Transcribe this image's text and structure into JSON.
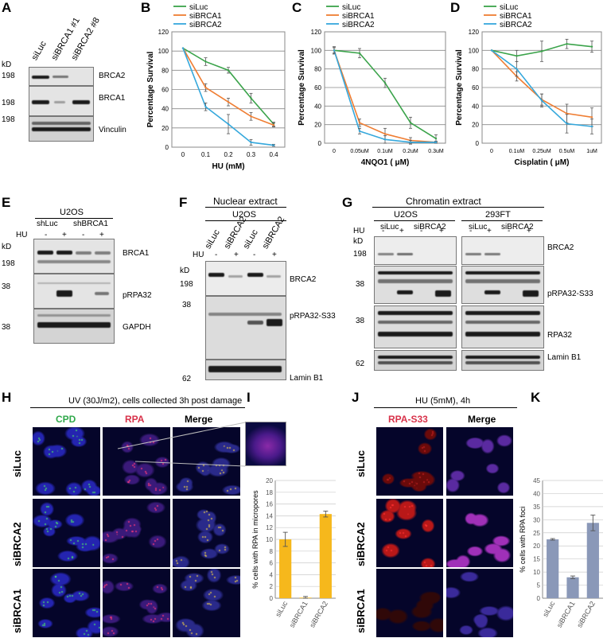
{
  "panels": {
    "A": "A",
    "B": "B",
    "C": "C",
    "D": "D",
    "E": "E",
    "F": "F",
    "G": "G",
    "H": "H",
    "I": "I",
    "J": "J",
    "K": "K"
  },
  "panelA": {
    "lanes": [
      "siLuc",
      "siBRCA1 #1",
      "siBRCA2 #8"
    ],
    "kd": "kD",
    "markers": [
      "198",
      "198",
      "198"
    ],
    "proteins": [
      "BRCA2",
      "BRCA1",
      "Vinculin"
    ]
  },
  "colors": {
    "siLuc": "#3aa34a",
    "siBRCA1": "#ef7d32",
    "siBRCA2": "#35a8dc",
    "bar_I": "#f6b81c",
    "bar_K": "#8a98b8"
  },
  "chart_data": [
    {
      "type": "line",
      "panel": "B",
      "ylabel": "Percentage Survival",
      "xlabel": "HU (mM)",
      "x": [
        "0",
        "0.1",
        "0.2",
        "0.3",
        "0.4"
      ],
      "ylim": [
        0,
        120
      ],
      "yticks": [
        0,
        20,
        40,
        60,
        80,
        100,
        120
      ],
      "series": [
        {
          "name": "siLuc",
          "values": [
            103,
            89,
            80,
            51,
            24
          ],
          "err": [
            0,
            4,
            3,
            5,
            2
          ]
        },
        {
          "name": "siBRCA1",
          "values": [
            103,
            62,
            47,
            32,
            23
          ],
          "err": [
            0,
            4,
            4,
            4,
            2
          ]
        },
        {
          "name": "siBRCA2",
          "values": [
            103,
            42,
            24,
            5,
            2
          ],
          "err": [
            0,
            4,
            10,
            3,
            1
          ]
        }
      ]
    },
    {
      "type": "line",
      "panel": "C",
      "ylabel": "Percentage Survival",
      "xlabel": "4NQO1 ( μM)",
      "x": [
        "0",
        "0.05uM",
        "0.1uM",
        "0.2uM",
        "0.3uM"
      ],
      "ylim": [
        0,
        120
      ],
      "yticks": [
        0,
        20,
        40,
        60,
        80,
        100,
        120
      ],
      "series": [
        {
          "name": "siLuc",
          "values": [
            100,
            97,
            65,
            22,
            5
          ],
          "err": [
            4,
            5,
            5,
            6,
            4
          ]
        },
        {
          "name": "siBRCA1",
          "values": [
            100,
            22,
            10,
            3,
            1
          ],
          "err": [
            3,
            4,
            6,
            3,
            1
          ]
        },
        {
          "name": "siBRCA2",
          "values": [
            100,
            13,
            4,
            1,
            1
          ],
          "err": [
            3,
            3,
            4,
            2,
            1
          ]
        }
      ]
    },
    {
      "type": "line",
      "panel": "D",
      "ylabel": "Percentage Survival",
      "xlabel": "Cisplatin ( μM)",
      "x": [
        "0",
        "0.1uM",
        "0.25uM",
        "0.5uM",
        "1uM"
      ],
      "ylim": [
        0,
        120
      ],
      "yticks": [
        0,
        20,
        40,
        60,
        80,
        100,
        120
      ],
      "series": [
        {
          "name": "siLuc",
          "values": [
            100,
            94,
            99,
            107,
            104
          ],
          "err": [
            0,
            6,
            11,
            5,
            6
          ]
        },
        {
          "name": "siBRCA1",
          "values": [
            100,
            72,
            47,
            32,
            28
          ],
          "err": [
            0,
            5,
            6,
            10,
            10
          ]
        },
        {
          "name": "siBRCA2",
          "values": [
            100,
            80,
            46,
            21,
            18
          ],
          "err": [
            0,
            8,
            7,
            10,
            8
          ]
        }
      ]
    },
    {
      "type": "bar",
      "panel": "I",
      "ylabel": "% cells with RPA in micropores",
      "categories": [
        "siLuc",
        "siBRCA1",
        "siBRCA2"
      ],
      "values": [
        10.0,
        0.1,
        14.3
      ],
      "err": [
        1.2,
        0.2,
        0.5
      ],
      "ylim": [
        0,
        20
      ],
      "yticks": [
        0,
        2,
        4,
        6,
        8,
        10,
        12,
        14,
        16,
        18,
        20
      ]
    },
    {
      "type": "bar",
      "panel": "K",
      "ylabel": "% cells with RPA foci",
      "categories": [
        "siLuc",
        "siBRCA1",
        "siBRCA2"
      ],
      "values": [
        22.5,
        8.0,
        28.8
      ],
      "err": [
        0.3,
        0.5,
        3.0
      ],
      "ylim": [
        0,
        45
      ],
      "yticks": [
        0,
        5,
        10,
        15,
        20,
        25,
        30,
        35,
        40,
        45
      ]
    }
  ],
  "panelE": {
    "cell": "U2OS",
    "groups": [
      "shLuc",
      "shBRCA1"
    ],
    "hu": "HU",
    "signs": [
      "-",
      "+",
      "-",
      "+"
    ],
    "kd": "kD",
    "markers": [
      "198",
      "38",
      "38"
    ],
    "proteins": [
      "BRCA1",
      "pRPA32",
      "GAPDH"
    ]
  },
  "panelF": {
    "title": "Nuclear extract",
    "cell": "U2OS",
    "lanes": [
      "siLuc",
      "siBRCA2",
      "siLuc",
      "siBRCA2"
    ],
    "hu": "HU",
    "signs": [
      "-",
      "+",
      "-",
      "+"
    ],
    "kd": "kD",
    "markers": [
      "198",
      "38",
      "62"
    ],
    "proteins": [
      "BRCA2",
      "pRPA32-S33",
      "Lamin B1"
    ]
  },
  "panelG": {
    "title": "Chromatin extract",
    "cells": [
      "U2OS",
      "293FT"
    ],
    "groups": [
      "siLuc",
      "siBRCA2",
      "siLuc",
      "siBRCA2"
    ],
    "hu": "HU",
    "signs": [
      "-",
      "+",
      "-",
      "+",
      "-",
      "+",
      "-",
      "+"
    ],
    "kd": "kD",
    "markers": [
      "198",
      "38",
      "38",
      "62"
    ],
    "proteins": [
      "BRCA2",
      "pRPA32-S33",
      "RPA32",
      "Lamin B1"
    ]
  },
  "panelH": {
    "title": "UV (30J/m2), cells collected 3h post damage",
    "columns": [
      "CPD",
      "RPA",
      "Merge"
    ],
    "rows": [
      "siLuc",
      "siBRCA2",
      "siBRCA1"
    ]
  },
  "panelJ": {
    "title": "HU (5mM), 4h",
    "columns": [
      "RPA-S33",
      "Merge"
    ],
    "rows": [
      "siLuc",
      "siBRCA2",
      "siBRCA1"
    ]
  }
}
